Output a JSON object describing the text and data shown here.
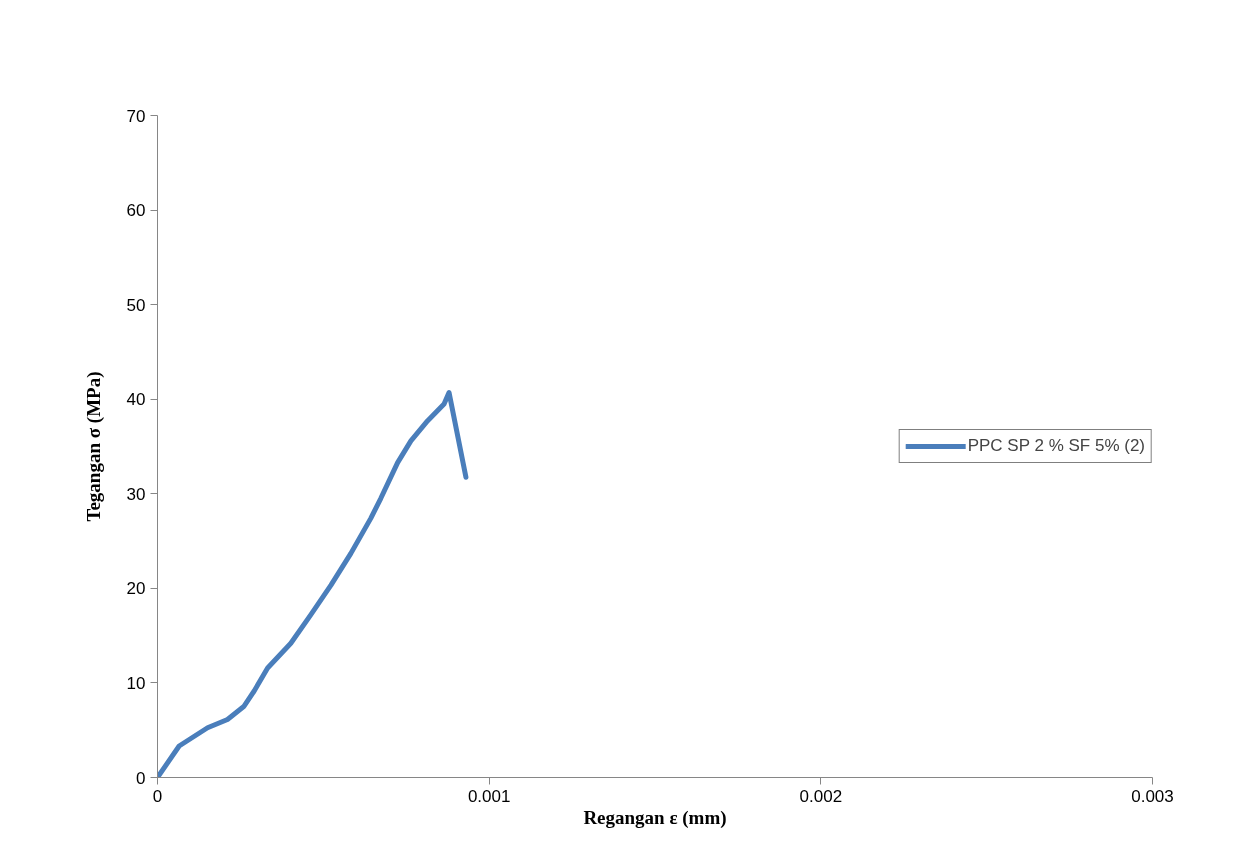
{
  "chart_data": {
    "type": "line",
    "xlabel": "Regangan ε (mm)",
    "ylabel": "Tegangan σ (MPa)",
    "xlim": [
      0,
      0.003
    ],
    "xticks": [
      0,
      0.001,
      0.002,
      0.003
    ],
    "ylim": [
      0,
      70
    ],
    "yticks": [
      0,
      10,
      20,
      30,
      40,
      50,
      60,
      70
    ],
    "grid": false,
    "legend": "right",
    "series": [
      {
        "name": "PPC SP 2 % SF 5% (2)",
        "color": "#4a7ebb",
        "x": [
          0,
          6.53e-05,
          0.000151,
          0.000211,
          0.000261,
          0.000291,
          0.000332,
          0.000402,
          0.000462,
          0.000523,
          0.000583,
          0.000643,
          0.000673,
          0.000724,
          0.000764,
          0.000814,
          0.000864,
          0.000879,
          0.00093
        ],
        "values": [
          0,
          3.33,
          5.26,
          6.14,
          7.54,
          9.12,
          11.58,
          14.2,
          17.2,
          20.35,
          23.7,
          27.4,
          29.5,
          33.3,
          35.6,
          37.7,
          39.5,
          40.7,
          31.75
        ]
      }
    ]
  }
}
